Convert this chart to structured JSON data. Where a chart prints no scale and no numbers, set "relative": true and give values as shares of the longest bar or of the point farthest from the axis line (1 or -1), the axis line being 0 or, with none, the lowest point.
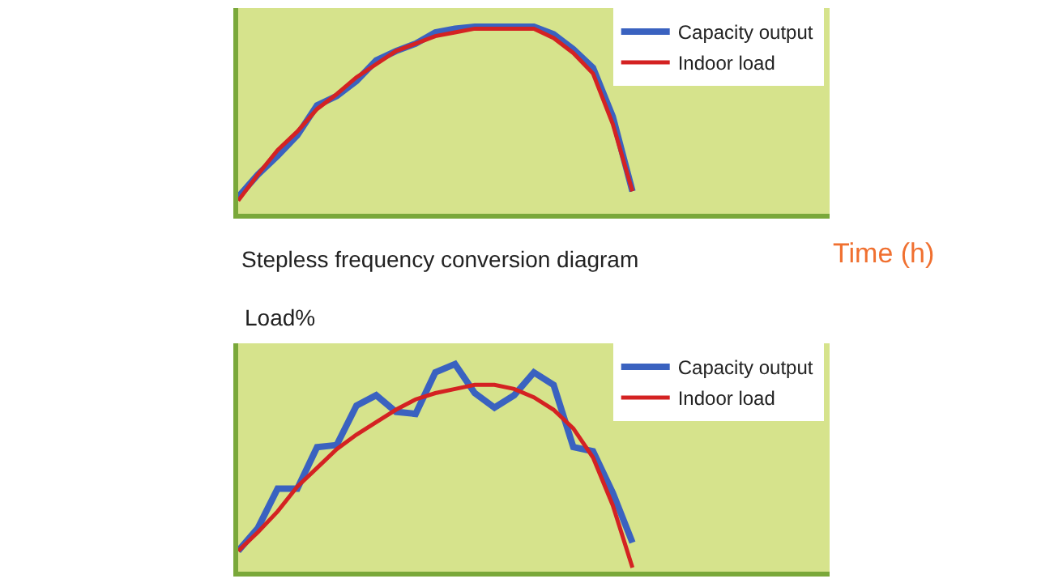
{
  "chart_data": [
    {
      "type": "line",
      "relative": true,
      "xlabel": "Time (h)",
      "annotations": [
        "Stepless frequency conversion diagram"
      ],
      "legend": "top right",
      "categories": [
        null,
        null,
        null,
        null,
        null,
        null,
        null,
        null,
        null,
        null,
        null,
        null,
        null,
        null,
        null,
        null,
        null,
        null,
        null,
        null,
        null,
        null,
        null,
        null,
        null,
        null,
        null,
        null,
        null,
        null,
        null
      ],
      "series": [
        {
          "name": "Capacity output",
          "color": "#3a62c0",
          "values": [
            0.09,
            0.21,
            0.31,
            0.42,
            0.58,
            0.63,
            0.71,
            0.82,
            0.87,
            0.91,
            0.97,
            0.99,
            1.0,
            1.0,
            1.0,
            1.0,
            0.96,
            0.88,
            0.78,
            0.52,
            0.12,
            null,
            null,
            null,
            null,
            null,
            null,
            null,
            null,
            null,
            null
          ]
        },
        {
          "name": "Indoor load",
          "color": "#d42222",
          "values": [
            0.07,
            0.21,
            0.34,
            0.44,
            0.56,
            0.64,
            0.73,
            0.8,
            0.87,
            0.91,
            0.95,
            0.97,
            0.99,
            0.99,
            0.99,
            0.99,
            0.94,
            0.86,
            0.75,
            0.48,
            0.12,
            null,
            null,
            null,
            null,
            null,
            null,
            null,
            null,
            null,
            null
          ]
        }
      ]
    },
    {
      "type": "line",
      "relative": true,
      "ylabel": "Load%",
      "legend": "top right",
      "categories": [
        null,
        null,
        null,
        null,
        null,
        null,
        null,
        null,
        null,
        null,
        null,
        null,
        null,
        null,
        null,
        null,
        null,
        null,
        null,
        null,
        null,
        null,
        null,
        null,
        null,
        null,
        null,
        null,
        null,
        null,
        null
      ],
      "series": [
        {
          "name": "Capacity output",
          "color": "#3a62c0",
          "values": [
            0.1,
            0.21,
            0.4,
            0.4,
            0.6,
            0.61,
            0.8,
            0.85,
            0.77,
            0.76,
            0.96,
            1.0,
            0.86,
            0.79,
            0.85,
            0.96,
            0.9,
            0.6,
            0.58,
            0.38,
            0.14,
            null,
            null,
            null,
            null,
            null,
            null,
            null,
            null,
            null,
            null
          ]
        },
        {
          "name": "Indoor load",
          "color": "#d42222",
          "values": [
            0.1,
            0.19,
            0.29,
            0.41,
            0.5,
            0.59,
            0.66,
            0.72,
            0.78,
            0.83,
            0.86,
            0.88,
            0.9,
            0.9,
            0.88,
            0.84,
            0.78,
            0.69,
            0.55,
            0.32,
            0.02,
            null,
            null,
            null,
            null,
            null,
            null,
            null,
            null,
            null,
            null
          ]
        }
      ]
    }
  ]
}
